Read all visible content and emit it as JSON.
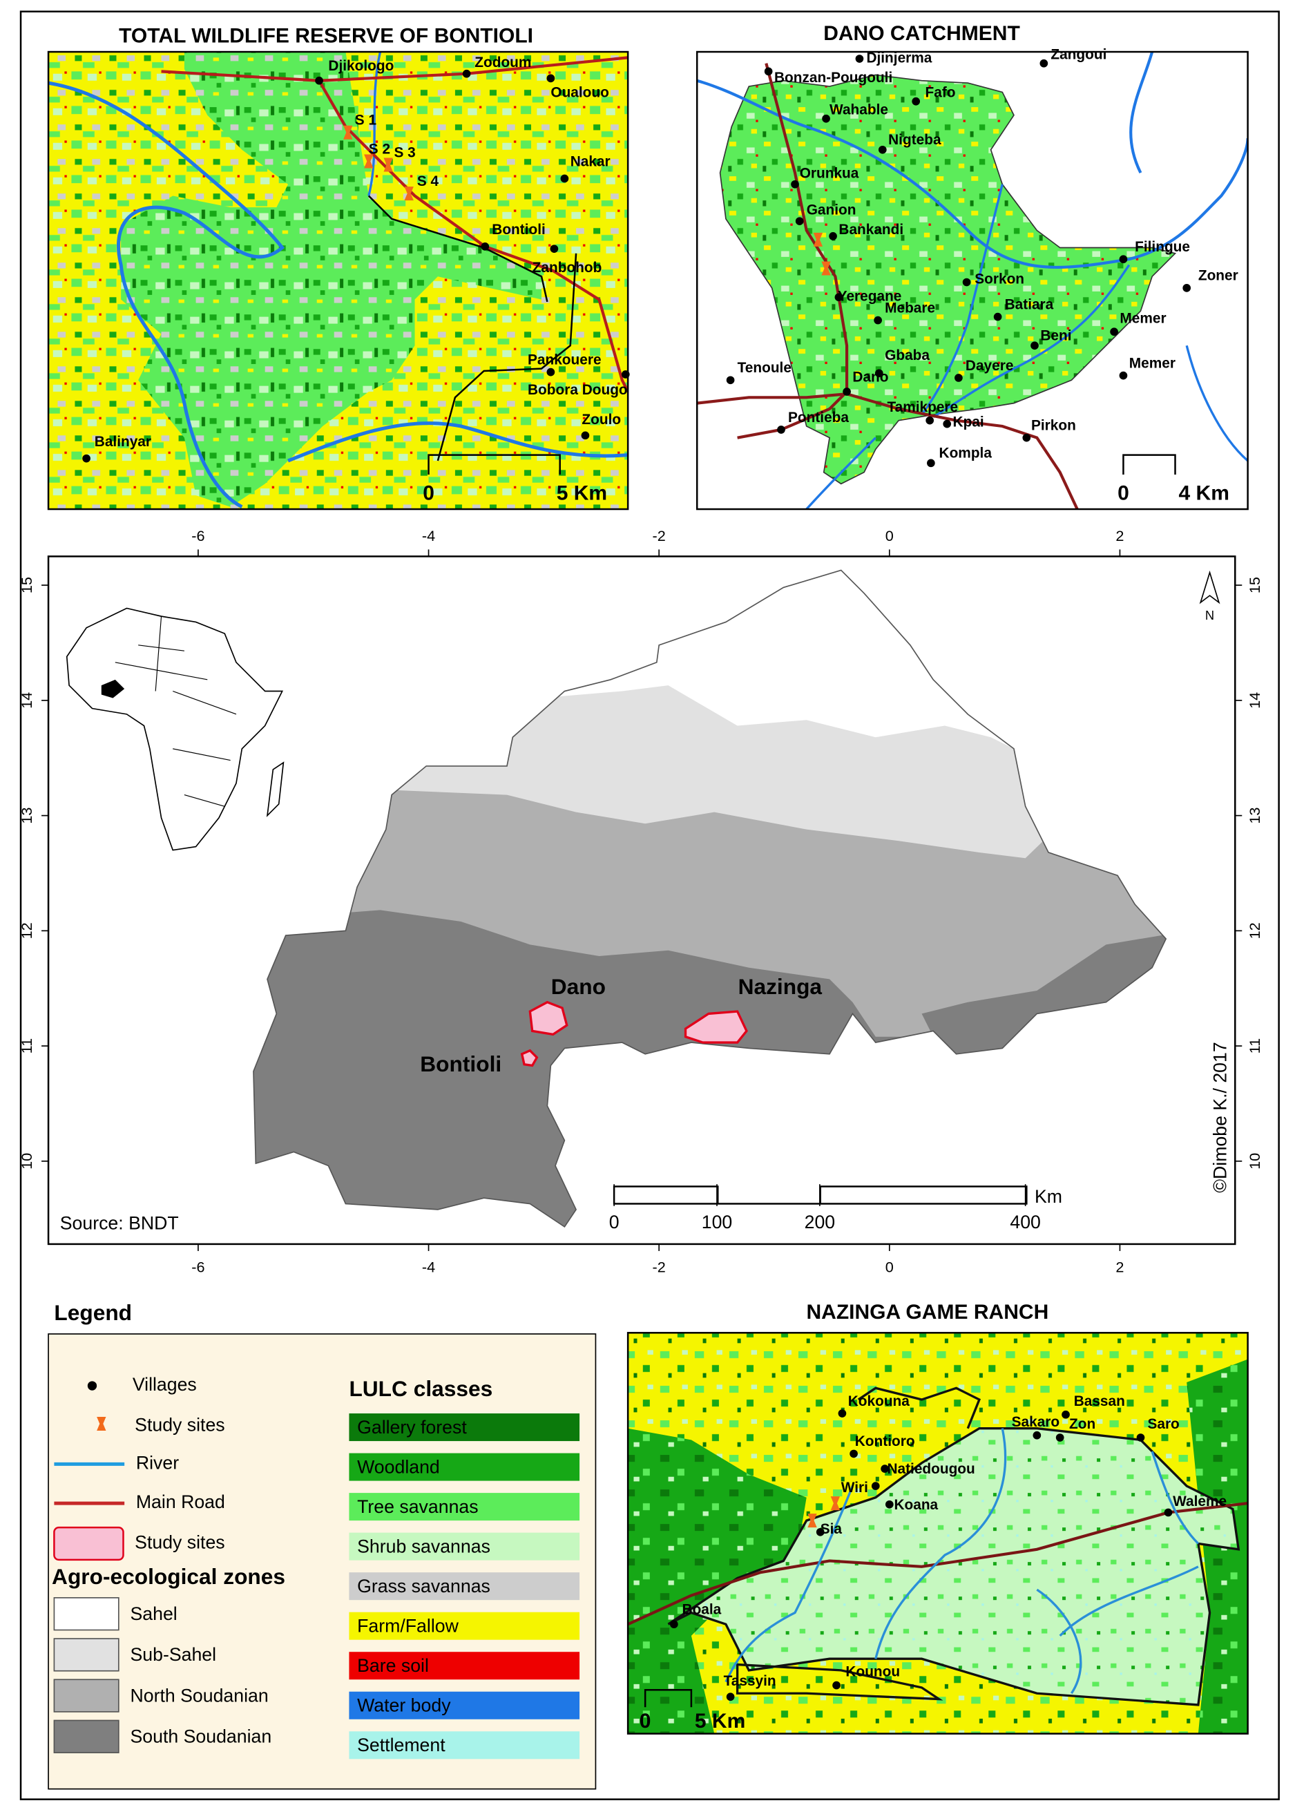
{
  "bontioli_map": {
    "title": "TOTAL WILDLIFE RESERVE OF BONTIOLI",
    "villages": [
      "Djikologo",
      "Zodoum",
      "Oualouo",
      "Nakar",
      "Bontioli",
      "Zanbohob",
      "Pankouere",
      "Bobora Dougo",
      "Zoulo",
      "Balinyar"
    ],
    "study_sites": [
      "S 1",
      "S 2",
      "S 3",
      "S 4"
    ],
    "scale_labels": [
      "0",
      "5 Km"
    ]
  },
  "dano_map": {
    "title": "DANO CATCHMENT",
    "villages": [
      "Djinjerma",
      "Zangoui",
      "Bonzan-Pougouli",
      "Fafo",
      "Wahable",
      "Nigteba",
      "Orunkua",
      "Ganion",
      "Bankandi",
      "Filingue",
      "Zoner",
      "Sorkon",
      "Yeregane",
      "Mebare",
      "Batiara",
      "Memer",
      "Beni",
      "Gbaba",
      "Tenoule",
      "Dano",
      "Dayere",
      "Memer",
      "Tamikpere",
      "Kpai",
      "Kompla",
      "Pirkon",
      "Pontieba"
    ],
    "scale_labels": [
      "0",
      "4 Km"
    ]
  },
  "main_map": {
    "xlim": [
      -7.3,
      3.0
    ],
    "ylim": [
      9.28,
      15.25
    ],
    "xticks": [
      -6,
      -4,
      -2,
      0,
      2
    ],
    "yticks": [
      10,
      11,
      12,
      13,
      14,
      15
    ],
    "site_labels": [
      "Dano",
      "Nazinga",
      "Bontioli"
    ],
    "source": "Source: BNDT",
    "credit": "©Dimobe K./ 2017",
    "north": "N",
    "scale_ticks": [
      0,
      100,
      200,
      400
    ],
    "scale_unit": "Km"
  },
  "nazinga_map": {
    "title": "NAZINGA GAME RANCH",
    "villages": [
      "Kokouna",
      "Bassan",
      "Sakaro",
      "Zon",
      "Saro",
      "Kontioro",
      "Natiedougou",
      "Wiri",
      "Koana",
      "Sia",
      "Waleme",
      "Boala",
      "Tassyin",
      "Kounou"
    ],
    "scale_labels": [
      "0",
      "5 Km"
    ]
  },
  "legend": {
    "title": "Legend",
    "symbols": [
      "Villages",
      "Study sites",
      "River",
      "Main Road",
      "Study sites"
    ],
    "zones_title": "Agro-ecological zones",
    "zones": [
      {
        "name": "Sahel",
        "color": "#ffffff"
      },
      {
        "name": "Sub-Sahel",
        "color": "#e1e1e1"
      },
      {
        "name": "North Soudanian",
        "color": "#b0b0b0"
      },
      {
        "name": "South Soudanian",
        "color": "#7f7f7f"
      }
    ],
    "lulc_title": "LULC classes",
    "lulc": [
      {
        "name": "Gallery forest",
        "color": "#0b7a0b"
      },
      {
        "name": "Woodland",
        "color": "#16a816"
      },
      {
        "name": "Tree savannas",
        "color": "#5cec5a"
      },
      {
        "name": "Shrub savannas",
        "color": "#c6f8c0"
      },
      {
        "name": "Grass savannas",
        "color": "#cdcdcd"
      },
      {
        "name": "Farm/Fallow",
        "color": "#f5f500"
      },
      {
        "name": "Bare soil",
        "color": "#ee0000"
      },
      {
        "name": "Water body",
        "color": "#1f78e6"
      },
      {
        "name": "Settlement",
        "color": "#a8f3ea"
      }
    ]
  }
}
